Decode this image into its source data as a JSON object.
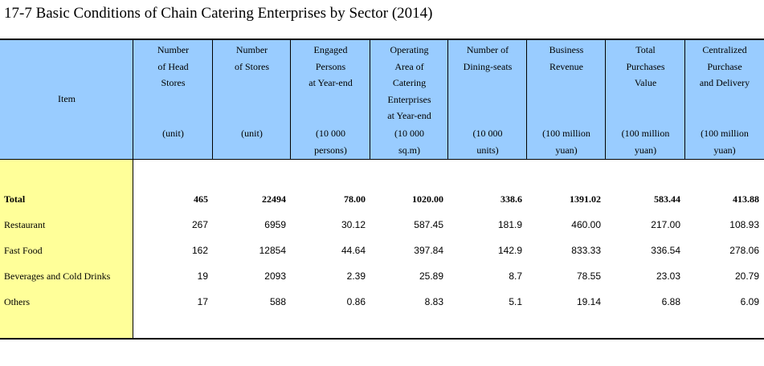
{
  "title": "17-7  Basic Conditions of Chain Catering Enterprises by Sector (2014)",
  "item_header": "Item",
  "columns": [
    {
      "lines": [
        "Number",
        "of Head",
        "Stores"
      ],
      "unit": [
        "(unit)"
      ]
    },
    {
      "lines": [
        "Number",
        "of Stores"
      ],
      "unit": [
        "(unit)"
      ]
    },
    {
      "lines": [
        "Engaged",
        "Persons",
        "at Year-end"
      ],
      "unit": [
        "(10 000",
        "persons)"
      ]
    },
    {
      "lines": [
        "Operating",
        "Area of",
        "Catering",
        "Enterprises",
        "at Year-end"
      ],
      "unit": [
        "(10 000",
        "sq.m)"
      ]
    },
    {
      "lines": [
        "Number of",
        "Dining-seats"
      ],
      "unit": [
        "(10 000",
        "units)"
      ]
    },
    {
      "lines": [
        "Business",
        "Revenue"
      ],
      "unit": [
        "(100 million",
        "yuan)"
      ]
    },
    {
      "lines": [
        "Total",
        "Purchases",
        "Value"
      ],
      "unit": [
        "(100 million",
        "yuan)"
      ]
    },
    {
      "lines": [
        "Centralized",
        "Purchase",
        "and Delivery"
      ],
      "unit": [
        "(100 million",
        "yuan)"
      ]
    }
  ],
  "rows": [
    {
      "label": "Total",
      "values": [
        "465",
        "22494",
        "78.00",
        "1020.00",
        "338.6",
        "1391.02",
        "583.44",
        "413.88"
      ]
    },
    {
      "label": "Restaurant",
      "values": [
        "267",
        "6959",
        "30.12",
        "587.45",
        "181.9",
        "460.00",
        "217.00",
        "108.93"
      ]
    },
    {
      "label": "Fast Food",
      "values": [
        "162",
        "12854",
        "44.64",
        "397.84",
        "142.9",
        "833.33",
        "336.54",
        "278.06"
      ]
    },
    {
      "label": "Beverages and Cold Drinks",
      "values": [
        "19",
        "2093",
        "2.39",
        "25.89",
        "8.7",
        "78.55",
        "23.03",
        "20.79"
      ]
    },
    {
      "label": "Others",
      "values": [
        "17",
        "588",
        "0.86",
        "8.83",
        "5.1",
        "19.14",
        "6.88",
        "6.09"
      ]
    }
  ]
}
